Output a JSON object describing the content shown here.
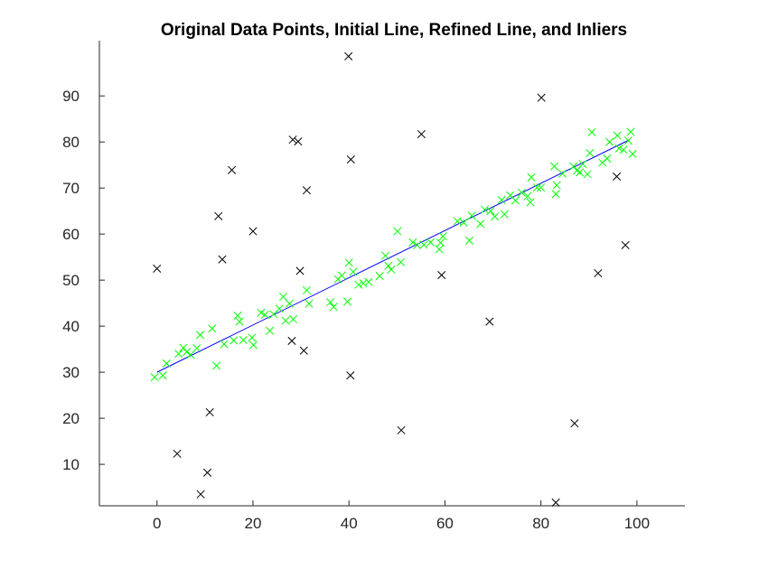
{
  "chart_data": {
    "type": "scatter",
    "title": "Original Data Points, Initial Line, Refined Line, and Inliers",
    "xlabel": "",
    "ylabel": "",
    "xlim": [
      -12,
      110
    ],
    "ylim": [
      1,
      102
    ],
    "x_ticks": [
      0,
      20,
      40,
      60,
      80,
      100
    ],
    "y_ticks": [
      10,
      20,
      30,
      40,
      50,
      60,
      70,
      80,
      90
    ],
    "grid": false,
    "legend": "none",
    "colors": {
      "original_points": "#000000",
      "inliers": "#00ff00",
      "line": "#0000ff",
      "axis": "#262626"
    },
    "series": [
      {
        "kind": "points",
        "marker": "x",
        "color": "#000000",
        "points": [
          [
            0,
            52.5
          ],
          [
            4.2,
            12.3
          ],
          [
            9.1,
            3.5
          ],
          [
            10.5,
            8.2
          ],
          [
            11.0,
            21.3
          ],
          [
            12.8,
            63.9
          ],
          [
            13.6,
            54.5
          ],
          [
            15.6,
            73.9
          ],
          [
            20.0,
            60.6
          ],
          [
            28.3,
            80.5
          ],
          [
            29.4,
            80.1
          ],
          [
            28.1,
            36.8
          ],
          [
            29.8,
            52.0
          ],
          [
            30.6,
            34.7
          ],
          [
            31.2,
            69.5
          ],
          [
            39.9,
            98.6
          ],
          [
            40.3,
            29.3
          ],
          [
            40.4,
            76.2
          ],
          [
            50.9,
            17.4
          ],
          [
            55.1,
            81.7
          ],
          [
            59.3,
            51.1
          ],
          [
            69.3,
            41.0
          ],
          [
            80.1,
            89.6
          ],
          [
            83.1,
            1.7
          ],
          [
            87.0,
            18.9
          ],
          [
            91.9,
            51.5
          ],
          [
            95.8,
            72.5
          ],
          [
            97.6,
            57.6
          ]
        ]
      },
      {
        "kind": "inliers",
        "marker": "x",
        "color": "#00ff00",
        "points": [
          [
            -0.5,
            28.9
          ],
          [
            1.2,
            29.3
          ],
          [
            2.0,
            31.9
          ],
          [
            4.5,
            34.0
          ],
          [
            5.5,
            35.3
          ],
          [
            6.2,
            34.4
          ],
          [
            7.0,
            33.8
          ],
          [
            8.3,
            35.2
          ],
          [
            9.0,
            38.1
          ],
          [
            11.5,
            39.5
          ],
          [
            12.4,
            31.4
          ],
          [
            14.0,
            36.1
          ],
          [
            16.0,
            36.9
          ],
          [
            16.8,
            42.3
          ],
          [
            17.2,
            41.0
          ],
          [
            18.0,
            37.0
          ],
          [
            19.8,
            37.5
          ],
          [
            20.1,
            35.9
          ],
          [
            21.7,
            42.9
          ],
          [
            22.5,
            42.5
          ],
          [
            23.5,
            39.0
          ],
          [
            24.3,
            42.6
          ],
          [
            25.5,
            43.8
          ],
          [
            26.3,
            46.4
          ],
          [
            26.8,
            41.2
          ],
          [
            27.6,
            44.9
          ],
          [
            28.4,
            41.5
          ],
          [
            31.2,
            47.8
          ],
          [
            31.7,
            44.9
          ],
          [
            36.1,
            45.2
          ],
          [
            36.8,
            44.2
          ],
          [
            37.7,
            50.2
          ],
          [
            38.5,
            51.0
          ],
          [
            39.7,
            45.3
          ],
          [
            40.0,
            53.8
          ],
          [
            40.9,
            51.8
          ],
          [
            42.0,
            49.0
          ],
          [
            43.0,
            49.3
          ],
          [
            44.1,
            49.6
          ],
          [
            46.4,
            50.9
          ],
          [
            47.6,
            55.3
          ],
          [
            48.2,
            53.1
          ],
          [
            48.8,
            52.3
          ],
          [
            50.1,
            60.6
          ],
          [
            50.8,
            53.9
          ],
          [
            53.3,
            58.2
          ],
          [
            54.2,
            57.6
          ],
          [
            55.6,
            57.7
          ],
          [
            57.0,
            58.2
          ],
          [
            58.8,
            56.7
          ],
          [
            59.1,
            58.1
          ],
          [
            59.6,
            59.5
          ],
          [
            62.6,
            62.8
          ],
          [
            63.9,
            62.5
          ],
          [
            65.1,
            58.6
          ],
          [
            65.6,
            64.0
          ],
          [
            67.4,
            62.2
          ],
          [
            68.3,
            65.3
          ],
          [
            69.5,
            65.0
          ],
          [
            70.4,
            63.8
          ],
          [
            71.8,
            67.4
          ],
          [
            72.4,
            64.3
          ],
          [
            73.6,
            68.4
          ],
          [
            74.7,
            67.3
          ],
          [
            76.0,
            69.0
          ],
          [
            77.2,
            68.2
          ],
          [
            77.8,
            66.9
          ],
          [
            78.0,
            72.3
          ],
          [
            79.2,
            70.1
          ],
          [
            80.0,
            70.1
          ],
          [
            82.8,
            74.7
          ],
          [
            83.1,
            68.7
          ],
          [
            83.3,
            70.6
          ],
          [
            84.5,
            73.1
          ],
          [
            86.8,
            74.7
          ],
          [
            87.5,
            73.8
          ],
          [
            88.1,
            73.4
          ],
          [
            88.7,
            75.2
          ],
          [
            89.7,
            73.0
          ],
          [
            90.2,
            77.6
          ],
          [
            90.6,
            82.1
          ],
          [
            92.8,
            75.5
          ],
          [
            93.8,
            76.4
          ],
          [
            94.3,
            80.0
          ],
          [
            95.9,
            81.4
          ],
          [
            96.3,
            78.6
          ],
          [
            97.2,
            78.3
          ],
          [
            98.2,
            80.3
          ],
          [
            98.7,
            82.2
          ],
          [
            99.1,
            77.4
          ]
        ]
      },
      {
        "kind": "line",
        "color": "#0000ff",
        "x": [
          0,
          98.5
        ],
        "y": [
          30.0,
          80.5
        ]
      }
    ]
  }
}
